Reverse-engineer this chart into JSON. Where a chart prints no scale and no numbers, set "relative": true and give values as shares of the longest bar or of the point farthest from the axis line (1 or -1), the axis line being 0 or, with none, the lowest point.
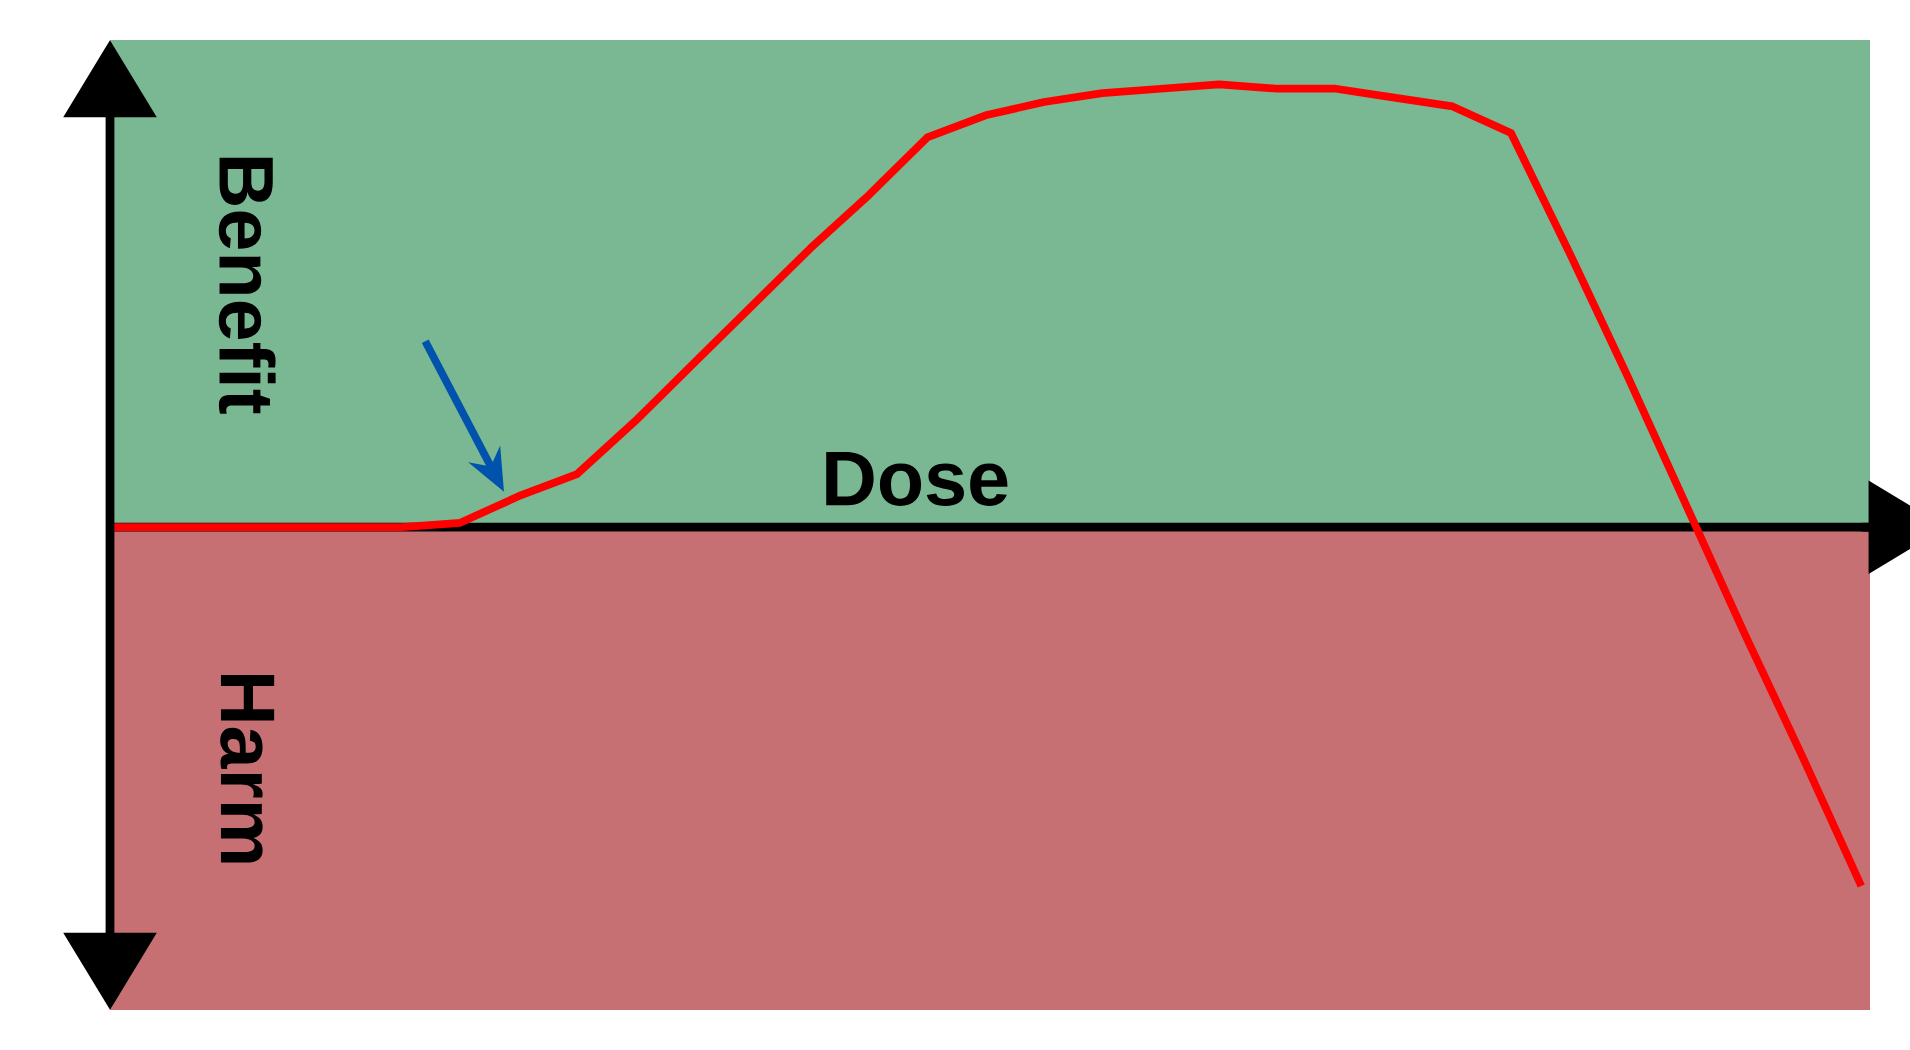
{
  "chart_data": {
    "type": "line",
    "relative": true,
    "xlabel": "Dose",
    "categories": [
      null,
      null,
      null,
      null,
      null,
      null,
      null,
      null,
      null,
      null,
      null,
      null,
      null,
      null,
      null,
      null,
      null,
      null,
      null,
      null,
      null,
      null,
      null,
      null,
      null,
      null,
      null,
      null,
      null,
      null,
      null
    ],
    "series": [
      {
        "color": "#ff0000",
        "values": [
          0,
          0,
          0,
          0,
          0,
          0,
          0.01,
          0.07,
          0.12,
          0.24,
          0.37,
          0.5,
          0.63,
          0.75,
          0.88,
          0.93,
          0.96,
          0.98,
          0.99,
          1.0,
          0.99,
          0.99,
          0.97,
          0.95,
          0.89,
          0.62,
          0.34,
          0.05,
          -0.24,
          -0.52,
          -0.81
        ]
      }
    ],
    "bands": [
      {
        "axis": "y",
        "from": 0,
        "to": 1.1,
        "label": "Benefit",
        "color": "#7ab893"
      },
      {
        "axis": "y",
        "from": -1.09,
        "to": 0,
        "label": "Harm",
        "color": "#c77074"
      }
    ],
    "marker": "none",
    "line_style": "solid"
  }
}
